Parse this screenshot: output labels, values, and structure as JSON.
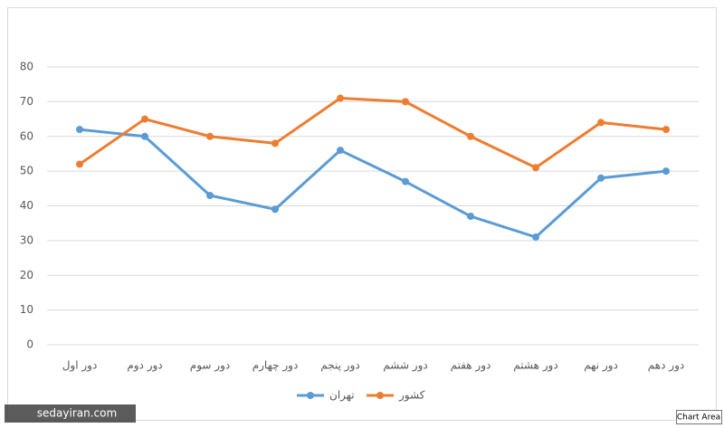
{
  "chart_data": {
    "type": "line",
    "categories": [
      "دور اول",
      "دور دوم",
      "دور سوم",
      "دور چهارم",
      "دور پنجم",
      "دور ششم",
      "دور هفتم",
      "دور هشتم",
      "دور نهم",
      "دور دهم"
    ],
    "series": [
      {
        "name": "تهران",
        "color": "#5b9bd5",
        "values": [
          62,
          60,
          43,
          39,
          56,
          47,
          37,
          31,
          48,
          50
        ]
      },
      {
        "name": "کشور",
        "color": "#ed7d31",
        "values": [
          52,
          65,
          60,
          58,
          71,
          70,
          60,
          51,
          64,
          62
        ]
      }
    ],
    "ylim": [
      0,
      80
    ],
    "yticks": [
      0,
      10,
      20,
      30,
      40,
      50,
      60,
      70,
      80
    ],
    "grid": true,
    "legend": "bottom",
    "watermark": "sedayiran.com",
    "tooltip": "Chart Area"
  }
}
